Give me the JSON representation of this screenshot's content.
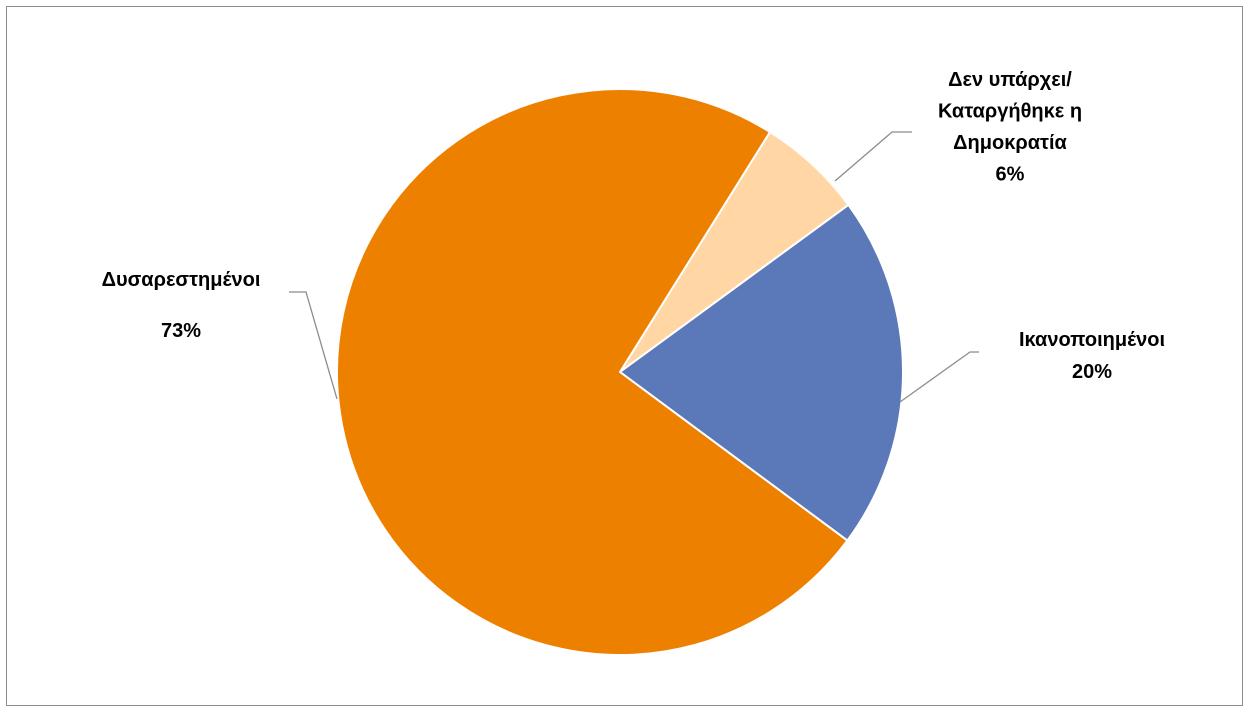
{
  "chart_data": {
    "type": "pie",
    "title": "",
    "start_angle_deg": 32,
    "direction": "clockwise",
    "slices": [
      {
        "label_lines": [
          "Δεν υπάρχει/",
          "Καταργήθηκε η",
          "Δημοκρατία"
        ],
        "percent_label": "6%",
        "value": 6,
        "color": "#FFD6A4"
      },
      {
        "label_lines": [
          "Ικανοποιημένοι"
        ],
        "percent_label": "20%",
        "value": 20,
        "color": "#5B79B8"
      },
      {
        "label_lines": [
          "Δυσαρεστημένοι"
        ],
        "percent_label": "73%",
        "value": 73,
        "color": "#EE8000"
      }
    ],
    "legend": "none"
  }
}
